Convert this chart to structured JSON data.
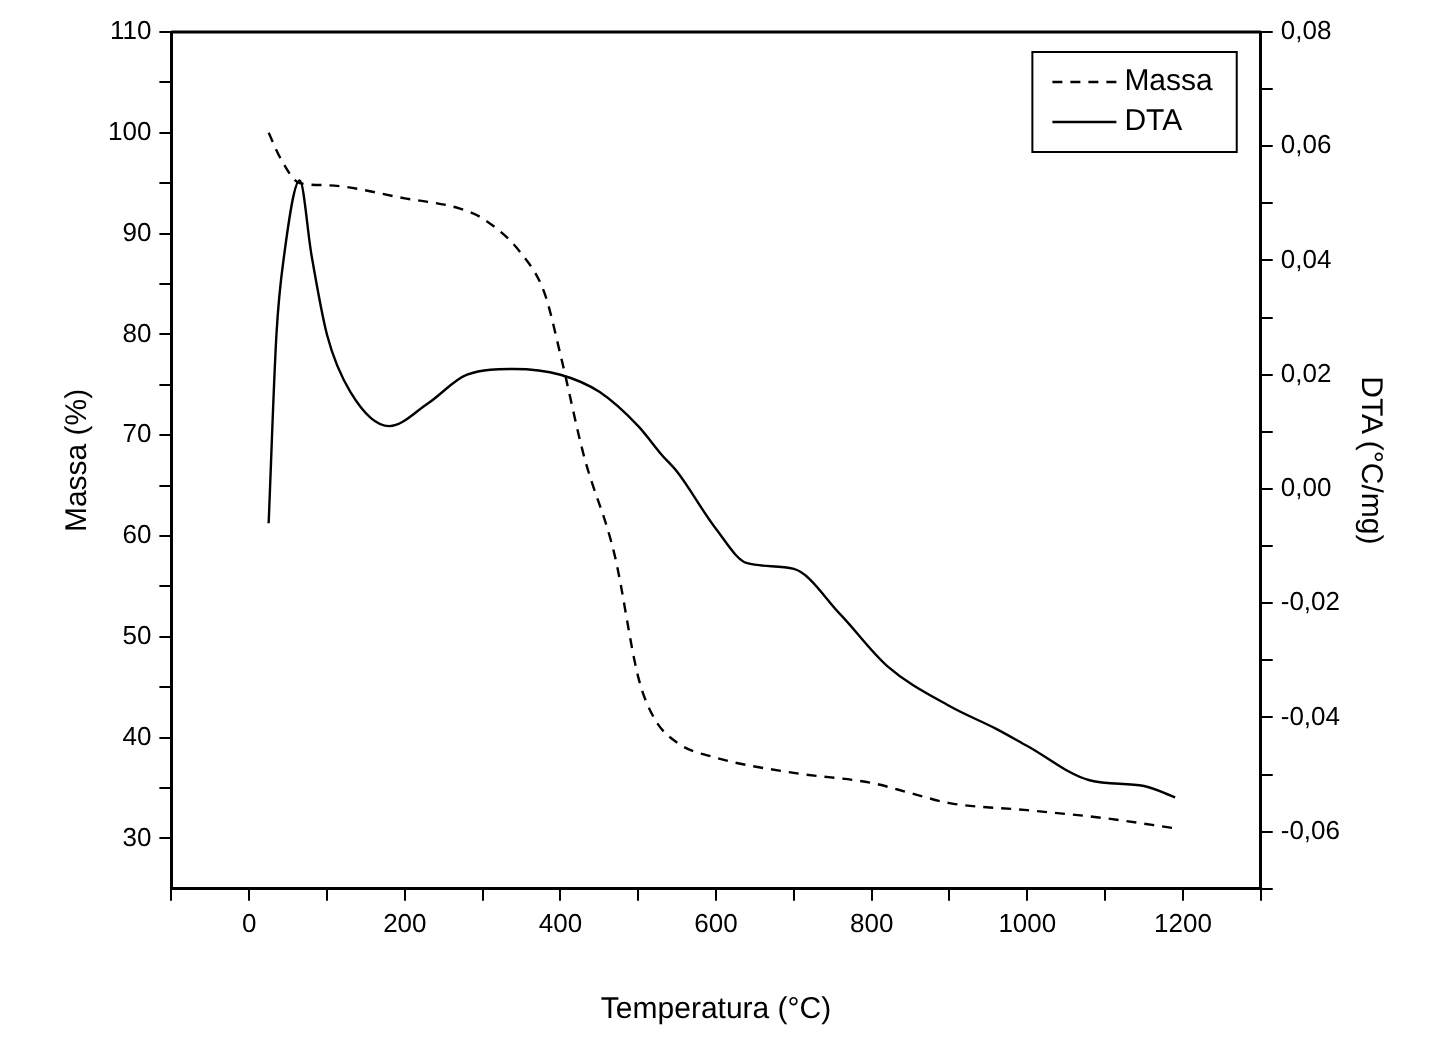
{
  "chart_data": {
    "type": "line",
    "xlabel": "Temperatura (°C)",
    "ylabel": "Massa (%)",
    "y2label": "DTA (°C/mg)",
    "xlim": [
      -100,
      1300
    ],
    "xticks": [
      {
        "value": -100,
        "label": null
      },
      0,
      {
        "value": 100,
        "label": null
      },
      200,
      {
        "value": 300,
        "label": null
      },
      400,
      {
        "value": 500,
        "label": null
      },
      600,
      {
        "value": 700,
        "label": null
      },
      800,
      {
        "value": 900,
        "label": null
      },
      1000,
      {
        "value": 1100,
        "label": null
      },
      1200,
      {
        "value": 1300,
        "label": null
      }
    ],
    "ylim": [
      25,
      110
    ],
    "yticks": [
      30,
      {
        "value": 35,
        "label": null
      },
      40,
      {
        "value": 45,
        "label": null
      },
      50,
      {
        "value": 55,
        "label": null
      },
      60,
      {
        "value": 65,
        "label": null
      },
      70,
      {
        "value": 75,
        "label": null
      },
      80,
      {
        "value": 85,
        "label": null
      },
      90,
      {
        "value": 95,
        "label": null
      },
      100,
      {
        "value": 105,
        "label": null
      },
      110
    ],
    "y2lim": [
      -0.07,
      0.08
    ],
    "y2ticks": [
      {
        "value": -0.07,
        "label": null
      },
      {
        "value": -0.06,
        "label": "-0,06"
      },
      {
        "value": -0.05,
        "label": null
      },
      {
        "value": -0.04,
        "label": "-0,04"
      },
      {
        "value": -0.03,
        "label": null
      },
      {
        "value": -0.02,
        "label": "-0,02"
      },
      {
        "value": -0.01,
        "label": null
      },
      {
        "value": 0,
        "label": "0,00"
      },
      {
        "value": 0.01,
        "label": null
      },
      {
        "value": 0.02,
        "label": "0,02"
      },
      {
        "value": 0.03,
        "label": null
      },
      {
        "value": 0.04,
        "label": "0,04"
      },
      {
        "value": 0.05,
        "label": null
      },
      {
        "value": 0.06,
        "label": "0,06"
      },
      {
        "value": 0.07,
        "label": null
      },
      {
        "value": 0.08,
        "label": "0,08"
      }
    ],
    "grid": false,
    "legend": "top right",
    "marker": "none",
    "series": [
      {
        "name": "Massa",
        "color": "#000000",
        "line_style": "dashed",
        "x": [
          25,
          40,
          65,
          100,
          200,
          270,
          300,
          350,
          380,
          400,
          430,
          470,
          500,
          520,
          550,
          600,
          700,
          800,
          850,
          900,
          1000,
          1100,
          1190
        ],
        "values": [
          100,
          97.5,
          95,
          94.8,
          93.5,
          92.5,
          91.5,
          88,
          84,
          78,
          68,
          58,
          46,
          42,
          39.5,
          38,
          36.5,
          35.5,
          34.5,
          33.5,
          32.8,
          32,
          31
        ]
      },
      {
        "name": "DTA",
        "color": "#000000",
        "line_style": "solid",
        "axis": "y2",
        "x": [
          25,
          35,
          45,
          65,
          80,
          100,
          130,
          180,
          230,
          280,
          340,
          400,
          450,
          500,
          530,
          550,
          600,
          640,
          700,
          760,
          820,
          900,
          960,
          1000,
          1080,
          1150,
          1190
        ],
        "values": [
          -0.006,
          0.027,
          0.041,
          0.054,
          0.041,
          0.027,
          0.017,
          0.011,
          0.015,
          0.02,
          0.021,
          0.02,
          0.017,
          0.011,
          0.006,
          0.003,
          -0.007,
          -0.013,
          -0.014,
          -0.022,
          -0.031,
          -0.038,
          -0.042,
          -0.045,
          -0.051,
          -0.052,
          -0.054
        ]
      }
    ]
  }
}
